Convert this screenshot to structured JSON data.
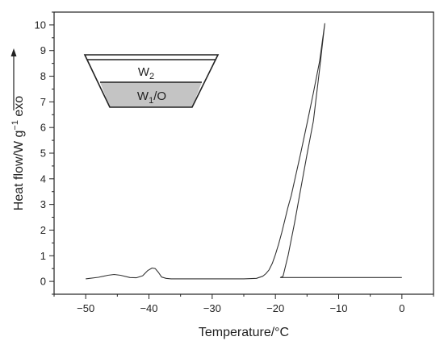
{
  "chart_data": {
    "type": "line",
    "xlabel": "Temperature/°C",
    "ylabel_main": "Heat flow/W g",
    "ylabel_sup": "−1",
    "ylabel_suffix": "  exo",
    "xlim": [
      -55,
      5
    ],
    "ylim": [
      -0.5,
      10.5
    ],
    "x_ticks": [
      -50,
      -40,
      -30,
      -20,
      -10,
      0
    ],
    "x_tick_labels": [
      "−50",
      "−40",
      "−30",
      "−20",
      "−10",
      "0"
    ],
    "y_ticks": [
      0,
      1,
      2,
      3,
      4,
      5,
      6,
      7,
      8,
      9,
      10
    ],
    "y_tick_labels": [
      "0",
      "1",
      "2",
      "3",
      "4",
      "5",
      "6",
      "7",
      "8",
      "9",
      "10"
    ],
    "series": [
      {
        "x": [
          -50,
          -48,
          -46.5,
          -45.5,
          -44.5,
          -43,
          -42,
          -41,
          -40.2,
          -39.5,
          -39,
          -38.5,
          -38,
          -37.3,
          -36.5,
          -35,
          -30,
          -25,
          -23,
          -22,
          -21.5,
          -21,
          -20.5,
          -20,
          -19.5,
          -19,
          -18.5,
          -18,
          -17.5,
          -17,
          -16,
          -15,
          -14,
          -13,
          -12.2,
          -13,
          -14,
          -15,
          -16,
          -17,
          -18,
          -18.8,
          -19.2,
          -19.2,
          -15,
          -10,
          -5,
          0
        ],
        "y": [
          0.1,
          0.16,
          0.24,
          0.27,
          0.24,
          0.15,
          0.14,
          0.22,
          0.42,
          0.52,
          0.5,
          0.35,
          0.17,
          0.12,
          0.1,
          0.1,
          0.1,
          0.1,
          0.12,
          0.2,
          0.3,
          0.45,
          0.7,
          1.05,
          1.45,
          1.9,
          2.4,
          2.9,
          3.35,
          3.9,
          5.0,
          6.15,
          7.35,
          8.6,
          10.05,
          8.3,
          6.25,
          4.95,
          3.6,
          2.25,
          1.0,
          0.2,
          0.15,
          0.15,
          0.15,
          0.15,
          0.15,
          0.15
        ]
      }
    ]
  },
  "inset": {
    "layer_top_label": "W",
    "layer_top_sub": "2",
    "layer_bottom_label": "W",
    "layer_bottom_sub": "1",
    "layer_bottom_suffix": "/O",
    "fill_color": "#c4c4c4"
  }
}
